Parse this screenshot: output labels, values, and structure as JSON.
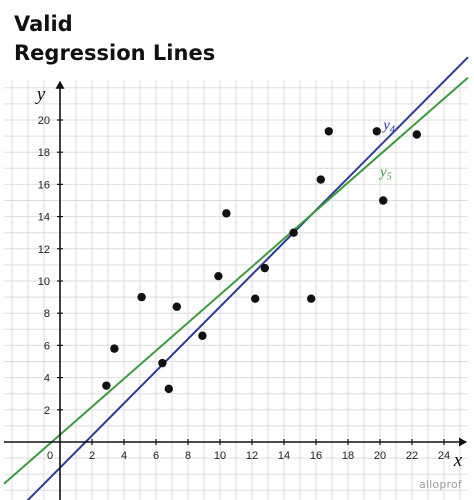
{
  "title_line1": "Valid",
  "title_line2": "Regression Lines",
  "watermark": "alloprof",
  "chart_data": {
    "type": "scatter",
    "title": "Valid Regression Lines",
    "xlabel": "x",
    "ylabel": "y",
    "xlim": [
      -3.5,
      25.5
    ],
    "ylim": [
      -3.8,
      22.5
    ],
    "xticks": [
      2,
      4,
      6,
      8,
      10,
      12,
      14,
      16,
      18,
      20,
      22,
      24
    ],
    "yticks": [
      2,
      4,
      6,
      8,
      10,
      12,
      14,
      16,
      18,
      20
    ],
    "origin_label": "0",
    "grid": true,
    "points": [
      {
        "x": 2.9,
        "y": 3.5
      },
      {
        "x": 3.4,
        "y": 5.8
      },
      {
        "x": 5.1,
        "y": 9.0
      },
      {
        "x": 6.4,
        "y": 4.9
      },
      {
        "x": 6.8,
        "y": 3.3
      },
      {
        "x": 7.3,
        "y": 8.4
      },
      {
        "x": 8.9,
        "y": 6.6
      },
      {
        "x": 9.9,
        "y": 10.3
      },
      {
        "x": 10.4,
        "y": 14.2
      },
      {
        "x": 12.2,
        "y": 8.9
      },
      {
        "x": 12.8,
        "y": 10.8
      },
      {
        "x": 14.6,
        "y": 13.0
      },
      {
        "x": 15.7,
        "y": 8.9
      },
      {
        "x": 16.3,
        "y": 16.3
      },
      {
        "x": 16.8,
        "y": 19.3
      },
      {
        "x": 19.8,
        "y": 19.3
      },
      {
        "x": 20.2,
        "y": 15.0
      },
      {
        "x": 22.3,
        "y": 19.1
      }
    ],
    "lines": [
      {
        "name": "y",
        "subscript": "4",
        "color": "#2e3a9c",
        "slope": 1.0,
        "intercept": -1.6
      },
      {
        "name": "y",
        "subscript": "5",
        "color": "#3c9b3c",
        "slope": 0.87,
        "intercept": 0.45
      }
    ],
    "colors": {
      "points": "#111111",
      "grid": "#dddddd",
      "axes": "#111111"
    }
  }
}
